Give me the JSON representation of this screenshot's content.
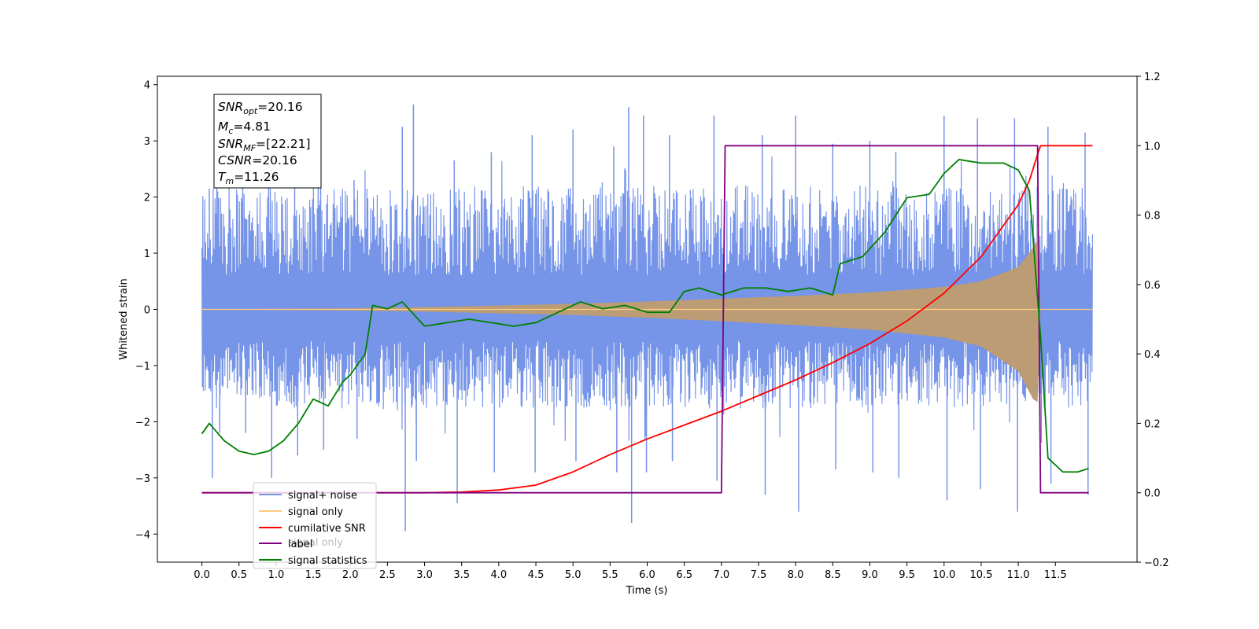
{
  "colors": {
    "noise": "#7694e8",
    "signal": "#ffa500",
    "overlap": "#bc9c75",
    "cumulative_snr": "#ff0000",
    "label": "#800080",
    "statistics": "#008000"
  },
  "chart_data": {
    "type": "line",
    "xlabel": "Time (s)",
    "ylabel": "Whitened strain",
    "y2label": "",
    "xlim": [
      -0.6,
      12.6
    ],
    "ylim": [
      -4.5,
      4.15
    ],
    "y2lim": [
      -0.2,
      1.2
    ],
    "x_ticks": [
      "0.0",
      "0.5",
      "1.0",
      "1.5",
      "2.0",
      "2.5",
      "3.0",
      "3.5",
      "4.0",
      "4.5",
      "5.0",
      "5.5",
      "6.0",
      "6.5",
      "7.0",
      "7.5",
      "8.0",
      "8.5",
      "9.0",
      "9.5",
      "10.0",
      "10.5",
      "11.0",
      "11.5"
    ],
    "y_ticks": [
      "−4",
      "−3",
      "−2",
      "−1",
      "0",
      "1",
      "2",
      "3",
      "4"
    ],
    "y2_ticks": [
      "−0.2",
      "0.0",
      "0.2",
      "0.4",
      "0.6",
      "0.8",
      "1.0",
      "1.2"
    ],
    "grid": false,
    "legend_position": "lower-left",
    "legend": [
      "signal+ noise",
      "signal only",
      "cumilative SNR",
      "label",
      "signal statistics"
    ],
    "legend_ghost": "signal only",
    "annotation": {
      "lines": [
        {
          "base": "SNR",
          "sub": "opt",
          "value": "=20.16"
        },
        {
          "base": "M",
          "sub": "c",
          "value": "=4.81"
        },
        {
          "base": "SNR",
          "sub": "MF",
          "value": "=[22.21]"
        },
        {
          "base": "CSNR",
          "sub": "",
          "value": "=20.16"
        },
        {
          "base": "T",
          "sub": "m",
          "value": "=11.26"
        }
      ]
    },
    "series": [
      {
        "name": "signal+ noise",
        "axis": "left",
        "kind": "noise_band",
        "x_range": [
          0.0,
          12.0
        ],
        "band_upper_typical": 2.2,
        "band_lower_typical": -1.6,
        "peaks_x": [
          0.1,
          0.2,
          0.55,
          0.9,
          1.25,
          1.6,
          2.05,
          2.7,
          2.85,
          3.4,
          3.9,
          4.45,
          5.0,
          5.55,
          5.75,
          5.95,
          6.3,
          6.9,
          7.55,
          8.0,
          8.5,
          9.0,
          9.35,
          10.0,
          10.45,
          10.95,
          11.4,
          11.9
        ],
        "peaks_upper": [
          2.15,
          2.8,
          2.7,
          3.1,
          2.9,
          2.8,
          2.3,
          3.25,
          3.65,
          2.65,
          2.8,
          3.1,
          3.2,
          2.9,
          3.6,
          3.45,
          3.1,
          3.45,
          3.1,
          3.45,
          2.95,
          3.0,
          2.8,
          3.45,
          3.4,
          3.4,
          3.25,
          3.15
        ],
        "peaks_lower": [
          -3.0,
          -2.2,
          -2.2,
          -3.0,
          -2.6,
          -2.5,
          -2.3,
          -3.95,
          -2.7,
          -3.45,
          -2.9,
          -2.9,
          -2.7,
          -2.9,
          -3.8,
          -2.9,
          -2.7,
          -3.05,
          -3.3,
          -3.6,
          -2.85,
          -2.9,
          -3.0,
          -3.4,
          -3.2,
          -3.6,
          -3.1,
          -3.3
        ]
      },
      {
        "name": "signal only",
        "axis": "left",
        "kind": "chirp_envelope",
        "x": [
          0.0,
          1.0,
          2.0,
          3.0,
          4.0,
          5.0,
          6.0,
          7.0,
          8.0,
          9.0,
          10.0,
          10.5,
          11.0,
          11.2,
          11.26,
          11.3,
          12.0
        ],
        "upper": [
          0.0,
          0.01,
          0.02,
          0.04,
          0.07,
          0.1,
          0.14,
          0.19,
          0.24,
          0.3,
          0.4,
          0.5,
          0.75,
          1.1,
          1.25,
          0.0,
          0.0
        ],
        "lower": [
          0.0,
          -0.01,
          -0.02,
          -0.04,
          -0.07,
          -0.1,
          -0.15,
          -0.21,
          -0.28,
          -0.36,
          -0.5,
          -0.66,
          -1.1,
          -1.6,
          -1.65,
          0.0,
          0.0
        ]
      },
      {
        "name": "cumilative SNR",
        "axis": "right",
        "x": [
          0.0,
          2.0,
          3.0,
          3.5,
          4.0,
          4.5,
          5.0,
          5.5,
          6.0,
          6.5,
          7.0,
          7.5,
          8.0,
          8.5,
          9.0,
          9.5,
          10.0,
          10.5,
          11.0,
          11.15,
          11.26,
          11.3,
          12.0
        ],
        "y": [
          0.0,
          0.0,
          0.0,
          0.002,
          0.008,
          0.022,
          0.06,
          0.11,
          0.155,
          0.195,
          0.235,
          0.28,
          0.325,
          0.375,
          0.43,
          0.495,
          0.575,
          0.68,
          0.83,
          0.9,
          0.975,
          1.0,
          1.0
        ]
      },
      {
        "name": "label",
        "axis": "right",
        "x": [
          0.0,
          7.0,
          7.05,
          11.26,
          11.3,
          11.95
        ],
        "y": [
          0.0,
          0.0,
          1.0,
          1.0,
          0.0,
          0.0
        ]
      },
      {
        "name": "signal statistics",
        "axis": "right",
        "x": [
          0.0,
          0.1,
          0.3,
          0.5,
          0.7,
          0.9,
          1.1,
          1.3,
          1.5,
          1.7,
          1.9,
          2.0,
          2.1,
          2.2,
          2.3,
          2.5,
          2.7,
          3.0,
          3.3,
          3.6,
          3.9,
          4.2,
          4.5,
          4.8,
          5.1,
          5.4,
          5.7,
          6.0,
          6.3,
          6.5,
          6.7,
          7.0,
          7.3,
          7.6,
          7.9,
          8.2,
          8.5,
          8.6,
          8.9,
          9.2,
          9.5,
          9.8,
          10.0,
          10.2,
          10.5,
          10.8,
          11.0,
          11.15,
          11.3,
          11.4,
          11.6,
          11.8,
          11.95
        ],
        "y": [
          0.17,
          0.2,
          0.15,
          0.12,
          0.11,
          0.12,
          0.15,
          0.2,
          0.27,
          0.25,
          0.32,
          0.34,
          0.37,
          0.4,
          0.54,
          0.53,
          0.55,
          0.48,
          0.49,
          0.5,
          0.49,
          0.48,
          0.49,
          0.52,
          0.55,
          0.53,
          0.54,
          0.52,
          0.52,
          0.58,
          0.59,
          0.57,
          0.59,
          0.59,
          0.58,
          0.59,
          0.57,
          0.66,
          0.68,
          0.75,
          0.85,
          0.86,
          0.92,
          0.96,
          0.95,
          0.95,
          0.93,
          0.87,
          0.45,
          0.1,
          0.06,
          0.06,
          0.07
        ]
      }
    ]
  }
}
